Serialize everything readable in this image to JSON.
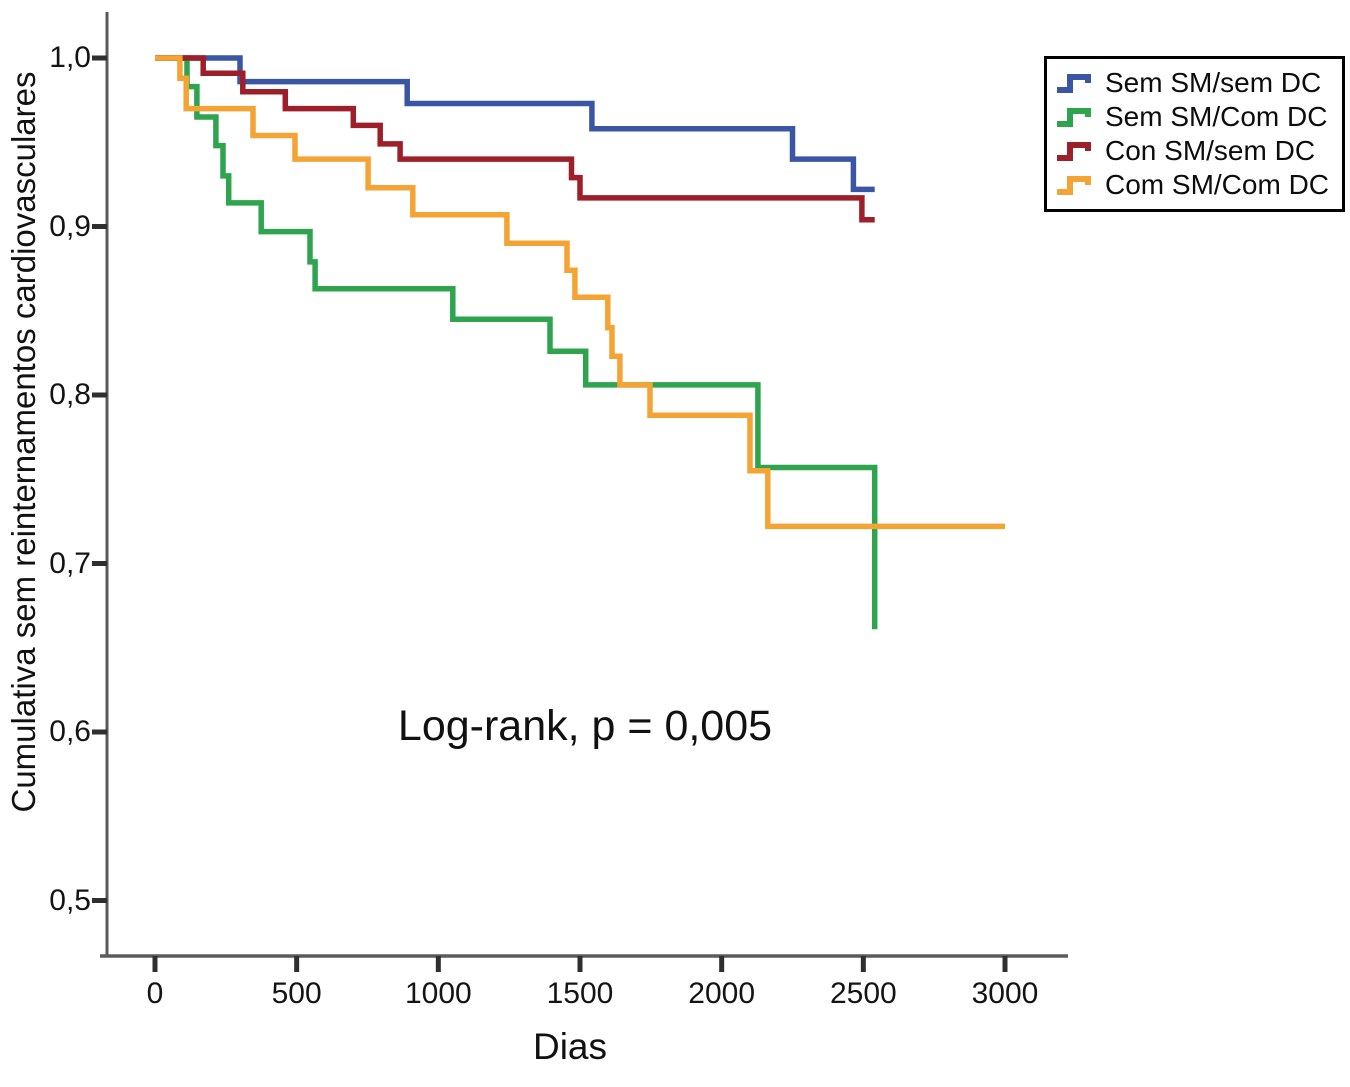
{
  "chart_data": {
    "type": "line",
    "subtype": "kaplan-meier-step-survival",
    "title": "",
    "xlabel": "Dias",
    "ylabel": "Cumulativa sem reinternamentos cardiovasculares",
    "annotation": "Log-rank, p = 0,005",
    "xlim": [
      0,
      3200
    ],
    "ylim": [
      0.47,
      1.02
    ],
    "grid": false,
    "legend_position": "top-right",
    "x_ticks": [
      {
        "value": 0,
        "label": "0"
      },
      {
        "value": 500,
        "label": "500"
      },
      {
        "value": 1000,
        "label": "1000"
      },
      {
        "value": 1500,
        "label": "1500"
      },
      {
        "value": 2000,
        "label": "2000"
      },
      {
        "value": 2500,
        "label": "2500"
      },
      {
        "value": 3000,
        "label": "3000"
      }
    ],
    "y_ticks": [
      {
        "value": 1.0,
        "label": "1,0"
      },
      {
        "value": 0.9,
        "label": "0,9"
      },
      {
        "value": 0.8,
        "label": "0,8"
      },
      {
        "value": 0.7,
        "label": "0,7"
      },
      {
        "value": 0.6,
        "label": "0,6"
      },
      {
        "value": 0.5,
        "label": "0,5"
      }
    ],
    "series": [
      {
        "name": "Sem SM/sem DC",
        "color": "#3B55A5",
        "steps": [
          [
            0,
            1.0
          ],
          [
            300,
            0.986
          ],
          [
            890,
            0.973
          ],
          [
            1542,
            0.958
          ],
          [
            2250,
            0.94
          ],
          [
            2465,
            0.922
          ]
        ],
        "end_x": 2540
      },
      {
        "name": "Sem SM/Com DC",
        "color": "#2FA44E",
        "steps": [
          [
            0,
            1.0
          ],
          [
            113,
            0.983
          ],
          [
            148,
            0.965
          ],
          [
            215,
            0.948
          ],
          [
            240,
            0.93
          ],
          [
            260,
            0.914
          ],
          [
            375,
            0.897
          ],
          [
            547,
            0.879
          ],
          [
            565,
            0.863
          ],
          [
            1051,
            0.845
          ],
          [
            1394,
            0.826
          ],
          [
            1520,
            0.806
          ],
          [
            2128,
            0.757
          ]
        ],
        "end_x": 2540,
        "final_drop_to": 0.661
      },
      {
        "name": "Con SM/sem DC",
        "color": "#9C1F2A",
        "steps": [
          [
            0,
            1.0
          ],
          [
            170,
            0.991
          ],
          [
            310,
            0.98
          ],
          [
            460,
            0.97
          ],
          [
            700,
            0.96
          ],
          [
            795,
            0.949
          ],
          [
            865,
            0.94
          ],
          [
            1470,
            0.929
          ],
          [
            1500,
            0.917
          ],
          [
            2495,
            0.904
          ]
        ],
        "end_x": 2540
      },
      {
        "name": "Com SM/Com DC",
        "color": "#F4A434",
        "steps": [
          [
            0,
            1.0
          ],
          [
            88,
            0.988
          ],
          [
            110,
            0.97
          ],
          [
            346,
            0.954
          ],
          [
            494,
            0.94
          ],
          [
            752,
            0.923
          ],
          [
            910,
            0.907
          ],
          [
            1242,
            0.89
          ],
          [
            1454,
            0.874
          ],
          [
            1482,
            0.858
          ],
          [
            1598,
            0.84
          ],
          [
            1613,
            0.823
          ],
          [
            1641,
            0.806
          ],
          [
            1747,
            0.788
          ],
          [
            2100,
            0.755
          ],
          [
            2163,
            0.722
          ]
        ],
        "end_x": 3000
      }
    ]
  },
  "colors": {
    "background": "#ffffff",
    "axis": "#5a5a5a",
    "tick": "#2f2f2f",
    "text": "#111111",
    "legend_border": "#000000"
  }
}
